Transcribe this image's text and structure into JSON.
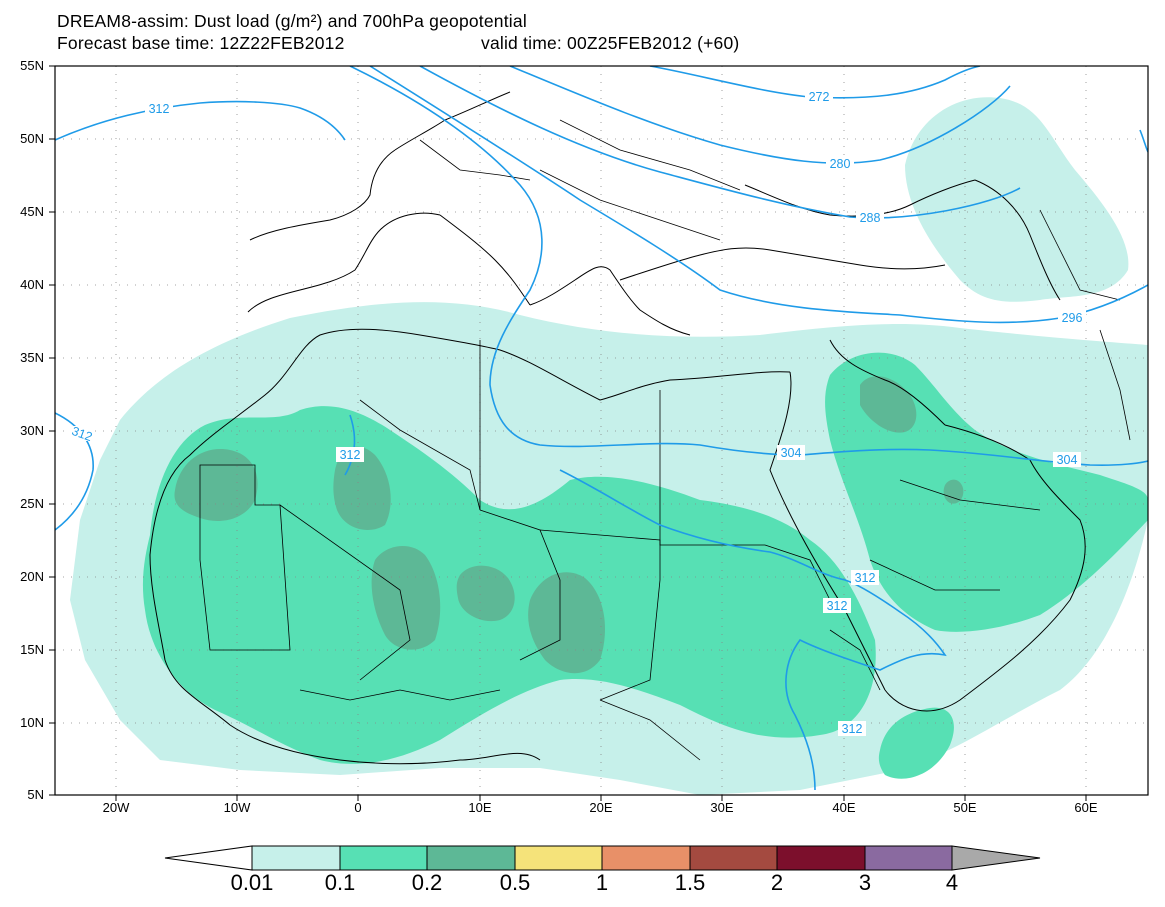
{
  "title": {
    "line1": "DREAM8-assim: Dust load (g/m²) and 700hPa geopotential",
    "line2": "Forecast base time: 12Z22FEB2012",
    "valid": "valid time: 00Z25FEB2012 (+60)"
  },
  "axes": {
    "lat_labels": [
      "55N",
      "50N",
      "45N",
      "40N",
      "35N",
      "30N",
      "25N",
      "20N",
      "15N",
      "10N",
      "5N"
    ],
    "lon_labels": [
      "20W",
      "10W",
      "0",
      "10E",
      "20E",
      "30E",
      "40E",
      "50E",
      "60E"
    ],
    "lat_range": [
      5,
      55
    ],
    "lon_range": [
      -25,
      65
    ]
  },
  "contours": {
    "labels": [
      "272",
      "280",
      "288",
      "296",
      "304",
      "304",
      "312",
      "312",
      "312",
      "312",
      "312",
      "312"
    ],
    "color": "#1f9be8"
  },
  "colorbar": {
    "levels": [
      "0.01",
      "0.1",
      "0.2",
      "0.5",
      "1",
      "1.5",
      "2",
      "3",
      "4"
    ],
    "colors": [
      "#ffffff",
      "#c6f0ea",
      "#57e0b4",
      "#5db896",
      "#f5e37a",
      "#e89068",
      "#a44a40",
      "#7c0f2c",
      "#8a6aa0",
      "#a9a9a9"
    ]
  },
  "dust_colors": {
    "light": "#c6f0ea",
    "medium": "#57e0b4",
    "dark": "#5db896"
  }
}
